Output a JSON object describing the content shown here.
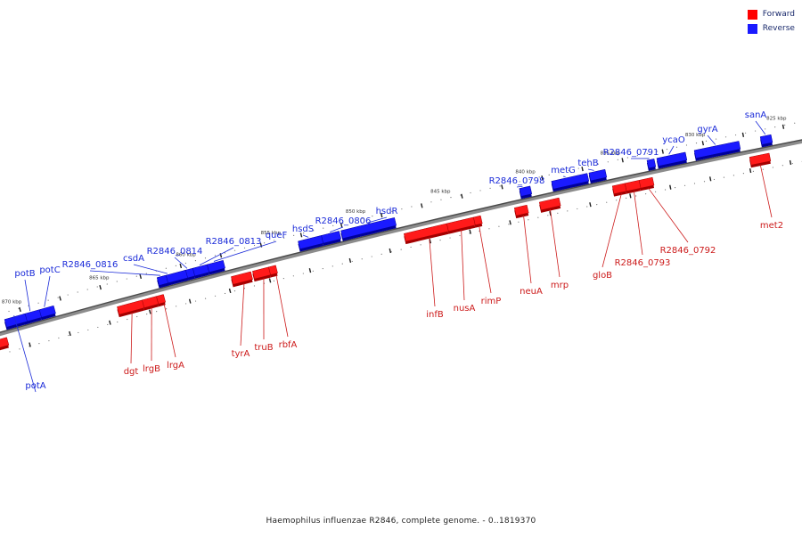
{
  "legend": {
    "forward_label": "Forward",
    "reverse_label": "Reverse",
    "forward_color": "#ff0000",
    "reverse_color": "#1a1aff"
  },
  "caption": "Haemophilus influenzae R2846, complete genome. - 0..1819370",
  "axis_labels": [
    "825 kbp",
    "830 kbp",
    "835 kbp",
    "840 kbp",
    "845 kbp",
    "850 kbp",
    "855 kbp",
    "860 kbp",
    "865 kbp",
    "870 kbp"
  ],
  "reverse_genes": [
    "sanA",
    "gyrA",
    "ycaO",
    "R2846_0791",
    "tehB",
    "metG",
    "R2846_0798",
    "hsdR",
    "R2846_0806",
    "hsdS",
    "queF",
    "R2846_0813",
    "R2846_0814",
    "csdA",
    "R2846_0816",
    "potC",
    "potB",
    "potA"
  ],
  "forward_genes": [
    "met2",
    "R2846_0792",
    "R2846_0793",
    "gloB",
    "mrp",
    "neuA",
    "rimP",
    "nusA",
    "infB",
    "rbfA",
    "truB",
    "tyrA",
    "lrgA",
    "lrgB",
    "dgt"
  ]
}
